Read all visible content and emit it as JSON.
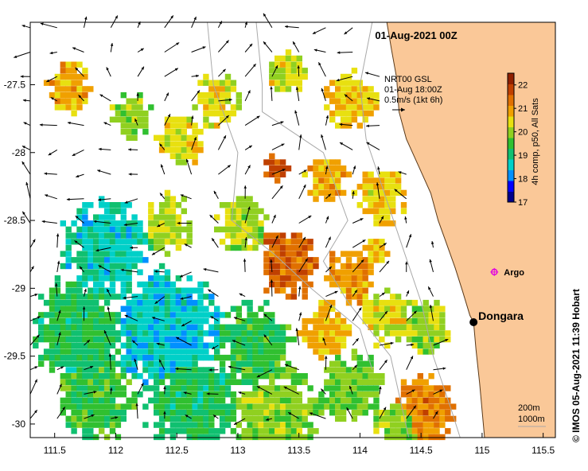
{
  "title": "01-Aug-2021 00Z",
  "current_info": {
    "line1": "NRT00 GSL",
    "line2": "01-Aug 18:00Z",
    "line3": "0.5m/s (1kt 6h)",
    "reference_speed_ms": 0.5
  },
  "colorbar": {
    "label": "4h comp, p50, All Sats",
    "min": 17,
    "max": 22.5,
    "ticks": [
      17,
      18,
      19,
      20,
      21,
      22
    ],
    "tick_labels": [
      "17",
      "18",
      "19",
      "20",
      "21",
      "22"
    ],
    "colors": [
      "#00008b",
      "#0000ff",
      "#0090ff",
      "#00d0c8",
      "#10c070",
      "#30c030",
      "#90d020",
      "#e8e010",
      "#f0a000",
      "#e07000",
      "#c04000",
      "#902000"
    ]
  },
  "axes": {
    "lon_min": 111.3,
    "lon_max": 115.6,
    "lat_min": -30.1,
    "lat_max": -27.04,
    "lon_ticks": [
      111.5,
      112,
      112.5,
      113,
      113.5,
      114,
      114.5,
      115,
      115.5
    ],
    "lon_tick_labels": [
      "111.5",
      "112",
      "112.5",
      "113",
      "113.5",
      "114",
      "114.5",
      "115",
      "115.5"
    ],
    "lat_ticks": [
      -27.5,
      -28,
      -28.5,
      -29,
      -29.5,
      -30
    ],
    "lat_tick_labels": [
      "-27.5",
      "-28",
      "-28.5",
      "-29",
      "-29.5",
      "-30"
    ]
  },
  "places": [
    {
      "name": "Dongara",
      "lon": 114.93,
      "lat": -29.25,
      "type": "town"
    },
    {
      "name": "Argo",
      "lon": 115.1,
      "lat": -28.88,
      "type": "argo-float"
    }
  ],
  "depth_contours": {
    "label_shallow": "200m",
    "label_deep": "1000m"
  },
  "credit": "© IMOS 05-Aug-2021 11:39 Hobart",
  "colors": {
    "land": "#fac898",
    "coast": "#5a3a1a",
    "arrow": "#000000",
    "contour": "#a9a9a9",
    "argo": "#e000e0"
  }
}
